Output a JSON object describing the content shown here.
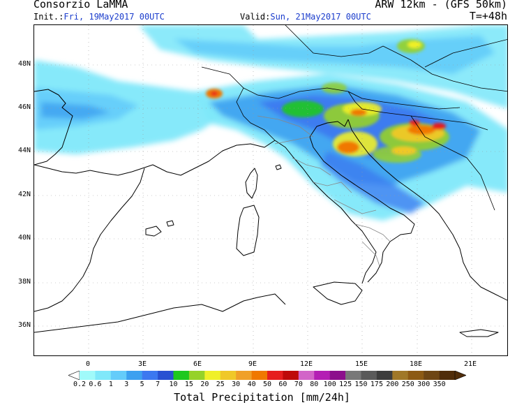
{
  "header": {
    "org": "Consorzio LaMMA",
    "model": "ARW 12km - (GFS 50km)",
    "init_key": "Init.:",
    "init_val": "Fri, 19May2017 00UTC",
    "valid_key": "Valid:",
    "valid_val": "Sun, 21May2017 00UTC",
    "lead": "T=+48h"
  },
  "map": {
    "lat_ticks": [
      "48N",
      "46N",
      "44N",
      "42N",
      "40N",
      "38N",
      "36N"
    ],
    "lon_ticks": [
      "0",
      "3E",
      "6E",
      "9E",
      "12E",
      "15E",
      "18E",
      "21E"
    ]
  },
  "colorbar": {
    "title": "Total Precipitation [mm/24h]",
    "labels": [
      "0.2",
      "0.6",
      "1",
      "3",
      "5",
      "7",
      "10",
      "15",
      "20",
      "25",
      "30",
      "40",
      "50",
      "60",
      "70",
      "80",
      "100",
      "125",
      "150",
      "175",
      "200",
      "250",
      "300",
      "350"
    ],
    "colors": [
      "#a0fafa",
      "#80e8fa",
      "#64ccfa",
      "#3ca0f0",
      "#3c78f0",
      "#2850d2",
      "#1ec81e",
      "#96d228",
      "#f0f028",
      "#f0c828",
      "#f0a028",
      "#f07800",
      "#e61e1e",
      "#be0a0a",
      "#d264c8",
      "#b41eb4",
      "#8c0f8c",
      "#787878",
      "#5a5a5a",
      "#3c3c3c",
      "#a07828",
      "#8c5a14",
      "#6e4614",
      "#502d0a"
    ],
    "left_tail_color": "#ffffff",
    "right_tail_color": "#502d0a"
  }
}
